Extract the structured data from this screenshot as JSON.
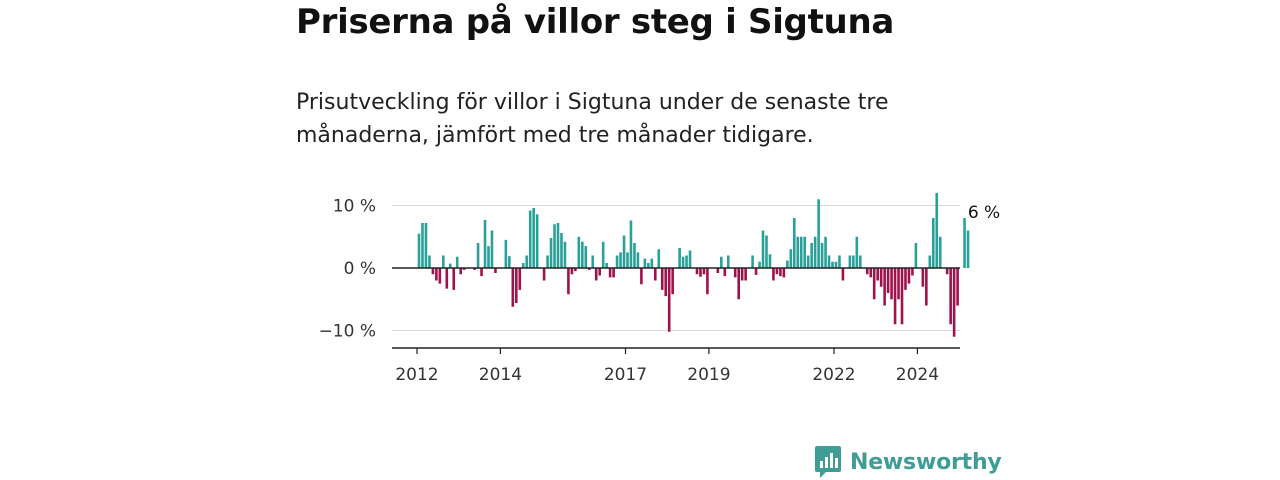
{
  "title": "Priserna på villor steg i Sigtuna",
  "subtitle": "Prisutveckling för villor i Sigtuna under de senaste tre månaderna, jämfört med tre månader tidigare.",
  "brand": {
    "name": "Newsworthy"
  },
  "colors": {
    "positive": "#2aa198",
    "negative": "#a0124c",
    "grid": "#d9d9d9",
    "axis": "#222222",
    "brand": "#3f9d95"
  },
  "chart_data": {
    "type": "bar",
    "title": "Priserna på villor steg i Sigtuna",
    "xlabel": "",
    "ylabel": "",
    "ylim": [
      -13,
      13
    ],
    "yticks": [
      {
        "value": 10,
        "label": "10 %"
      },
      {
        "value": 0,
        "label": "0 %"
      },
      {
        "value": -10,
        "label": "−10 %"
      }
    ],
    "xticks": [
      {
        "value": 2012,
        "label": "2012"
      },
      {
        "value": 2014,
        "label": "2014"
      },
      {
        "value": 2017,
        "label": "2017"
      },
      {
        "value": 2019,
        "label": "2019"
      },
      {
        "value": 2022,
        "label": "2022"
      },
      {
        "value": 2024,
        "label": "2024"
      }
    ],
    "x_start": 2012,
    "x_step": 0.08333,
    "unit": "%",
    "end_label": "6 %",
    "values": [
      5.5,
      7.2,
      7.2,
      2,
      -1,
      -2,
      -2.5,
      2,
      -3.3,
      0.7,
      -3.5,
      1.8,
      -1,
      -0.3,
      0,
      0,
      -0.3,
      4,
      -1.3,
      7.7,
      3.5,
      6,
      -0.8,
      0,
      0,
      4.5,
      1.9,
      -6.2,
      -5.6,
      -3.5,
      0.8,
      2,
      9.2,
      9.6,
      8.6,
      0,
      -2,
      2,
      4.8,
      7,
      7.2,
      5.6,
      4.2,
      -4.2,
      -1,
      -0.5,
      5,
      4.2,
      3.5,
      -0.3,
      2,
      -2,
      -1.2,
      4.2,
      0.8,
      -1.5,
      -1.5,
      2,
      2.5,
      5.2,
      2.5,
      7.6,
      4,
      2.5,
      -2.6,
      1.5,
      0.8,
      1.5,
      -2,
      3,
      -3.5,
      -4.5,
      -10.2,
      -4.2,
      0,
      3.2,
      1.8,
      2,
      2.8,
      0,
      -1,
      -1.4,
      -1,
      -4.2,
      0,
      0,
      -0.8,
      1.8,
      -1.3,
      2,
      0,
      -1.5,
      -5,
      -2,
      -2,
      0,
      2,
      -1.1,
      1,
      6,
      5.2,
      2.2,
      -2,
      -1,
      -1.3,
      -1.5,
      1.2,
      3,
      8,
      5,
      5,
      5,
      2,
      4,
      5,
      11,
      4,
      5,
      2,
      1,
      1,
      2,
      -2,
      0,
      2,
      2,
      5,
      2,
      0,
      -1,
      -1.5,
      -5,
      -2,
      -3,
      -6,
      -4,
      -5,
      -9,
      -5,
      -9,
      -3.5,
      -2.5,
      -1.2,
      4,
      0,
      -3,
      -6,
      2,
      8,
      12,
      5,
      0,
      -1,
      -9,
      -11,
      -6,
      0,
      8,
      6
    ]
  }
}
